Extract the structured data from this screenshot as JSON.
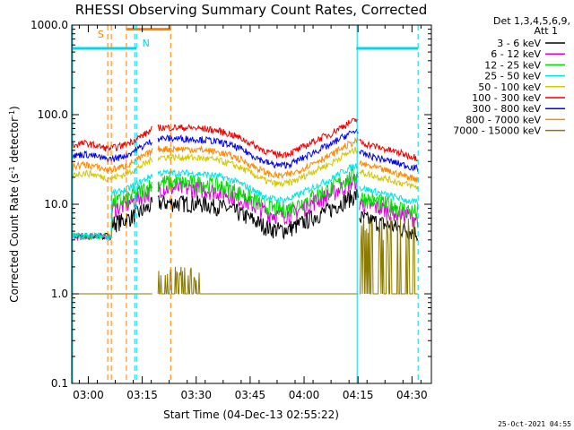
{
  "chart_data": {
    "type": "line",
    "title": "RHESSI Observing Summary Count Rates, Corrected",
    "xlabel": "Start Time (04-Dec-13 02:55:22)",
    "ylabel_main": "Corrected Count Rate (s",
    "ylabel_exp1": "-1",
    "ylabel_mid": " detector",
    "ylabel_exp2": "-1",
    "ylabel_end": ")",
    "y_scale": "log",
    "ylim": [
      0.1,
      1000
    ],
    "xlim_minutes": [
      0,
      100
    ],
    "y_ticks": [
      {
        "v": 0.1,
        "label": "0.1"
      },
      {
        "v": 1,
        "label": "1.0"
      },
      {
        "v": 10,
        "label": "10.0"
      },
      {
        "v": 100,
        "label": "100.0"
      },
      {
        "v": 1000,
        "label": "1000.0"
      }
    ],
    "x_ticks": [
      {
        "t": 4.6,
        "label": "03:00"
      },
      {
        "t": 19.6,
        "label": "03:15"
      },
      {
        "t": 34.6,
        "label": "03:30"
      },
      {
        "t": 49.6,
        "label": "03:45"
      },
      {
        "t": 64.6,
        "label": "04:00"
      },
      {
        "t": 79.6,
        "label": "04:15"
      },
      {
        "t": 94.6,
        "label": "04:30"
      }
    ],
    "legend": {
      "header1": "Det 1,3,4,5,6,9,",
      "header2": "Att 1",
      "placement": "right"
    },
    "series": [
      {
        "name": "3 - 6 keV",
        "color": "#000000",
        "base": 6.5
      },
      {
        "name": "6 - 12 keV",
        "color": "#dd00dd",
        "base": 9.5
      },
      {
        "name": "12 - 25 keV",
        "color": "#00dd00",
        "base": 11.0
      },
      {
        "name": "25 - 50 keV",
        "color": "#00e5e5",
        "base": 14.0
      },
      {
        "name": "50 - 100 keV",
        "color": "#d4c800",
        "base": 21.0
      },
      {
        "name": "100 - 300 keV",
        "color": "#ee0000",
        "base": 45.0
      },
      {
        "name": "300 - 800 keV",
        "color": "#0000ee",
        "base": 34.0
      },
      {
        "name": "800 - 7000 keV",
        "color": "#ff8800",
        "base": 26.0
      },
      {
        "name": "7000 - 15000 keV",
        "color": "#8b7a00",
        "base": 1.0
      }
    ],
    "segments_minutes": [
      [
        0,
        22.5
      ],
      [
        24.0,
        79.8
      ],
      [
        80.0,
        96.3
      ]
    ],
    "night_intervals_minutes": [
      [
        0,
        18.0
      ],
      [
        79.1,
        96.3
      ]
    ],
    "saa_interval_minutes": [
      15.2,
      27.5
    ],
    "markers": {
      "s_label": "S",
      "n_label": "N"
    }
  },
  "footer_date": "25-Oct-2021 04:55"
}
